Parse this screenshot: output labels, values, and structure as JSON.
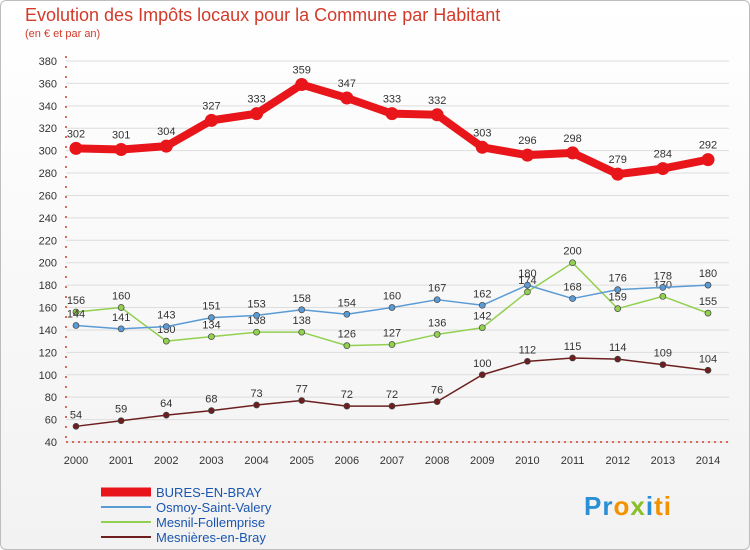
{
  "title": "Evolution des Impôts locaux pour la Commune par Habitant",
  "subtitle": "(en € et par an)",
  "logo": {
    "p": "Pr",
    "o": "o",
    "x": "x",
    "i": "i",
    "t": "ti"
  },
  "colors": {
    "title": "#d33a2a",
    "axis": "#d33a2a",
    "grid": "#dddddd"
  },
  "chart_data": {
    "type": "line",
    "x": [
      "2000",
      "2001",
      "2002",
      "2003",
      "2004",
      "2005",
      "2006",
      "2007",
      "2008",
      "2009",
      "2010",
      "2011",
      "2012",
      "2013",
      "2014"
    ],
    "ylim": [
      40,
      380
    ],
    "yticks": [
      40,
      60,
      80,
      100,
      120,
      140,
      160,
      180,
      200,
      220,
      240,
      260,
      280,
      300,
      320,
      340,
      360,
      380
    ],
    "grid": "horizontal",
    "legend": "bottom-left",
    "series": [
      {
        "name": "BURES-EN-BRAY",
        "color": "#e8161b",
        "values": [
          302,
          301,
          304,
          327,
          333,
          359,
          347,
          333,
          332,
          303,
          296,
          298,
          279,
          284,
          292
        ]
      },
      {
        "name": "Osmoy-Saint-Valery",
        "color": "#5b9bd5",
        "values": [
          144,
          141,
          143,
          151,
          153,
          158,
          154,
          160,
          167,
          162,
          180,
          168,
          176,
          178,
          180
        ]
      },
      {
        "name": "Mesnil-Follemprise",
        "color": "#92d050",
        "values": [
          156,
          160,
          130,
          134,
          138,
          138,
          126,
          127,
          136,
          142,
          174,
          200,
          159,
          170,
          155
        ]
      },
      {
        "name": "Mesnières-en-Bray",
        "color": "#6d1f1f",
        "values": [
          54,
          59,
          64,
          68,
          73,
          77,
          72,
          72,
          76,
          100,
          112,
          115,
          114,
          109,
          104
        ]
      }
    ]
  }
}
